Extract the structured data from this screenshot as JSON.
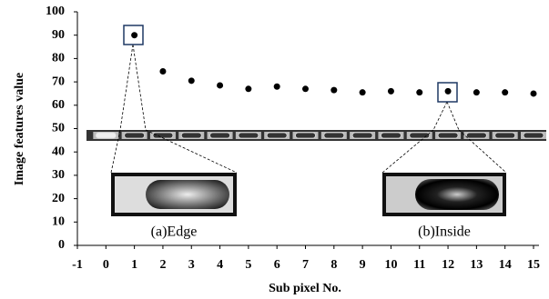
{
  "chart_data": {
    "type": "scatter",
    "x_label": "Sub pixel No.",
    "y_label": "Image features value",
    "x": [
      1,
      2,
      3,
      4,
      5,
      6,
      7,
      8,
      9,
      10,
      11,
      12,
      13,
      14,
      15
    ],
    "values": [
      90,
      74.5,
      70.5,
      68.5,
      67,
      68,
      67,
      66.5,
      65.5,
      66,
      65.5,
      66,
      65.5,
      65.5,
      65
    ],
    "color": "#000000",
    "xlim": [
      -1,
      15
    ],
    "xticks": [
      -1,
      0,
      1,
      2,
      3,
      4,
      5,
      6,
      7,
      8,
      9,
      10,
      11,
      12,
      13,
      14,
      15
    ],
    "ylim": [
      0,
      100
    ],
    "yticks": [
      0,
      10,
      20,
      30,
      40,
      50,
      60,
      70,
      80,
      90,
      100
    ],
    "annotations": [
      "(a)Edge",
      "(b)Inside"
    ]
  }
}
